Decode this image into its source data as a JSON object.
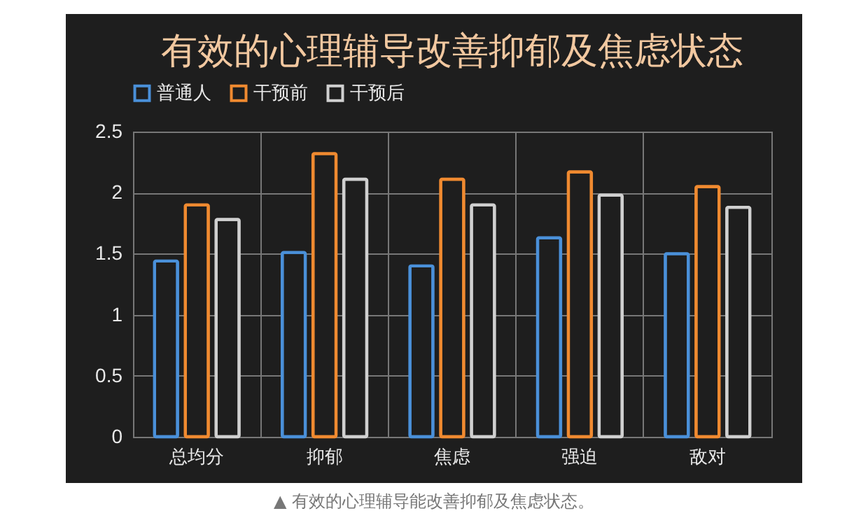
{
  "chart_data": {
    "type": "bar",
    "title": "有效的心理辅导改善抑郁及焦虑状态",
    "categories": [
      "总均分",
      "抑郁",
      "焦虑",
      "强迫",
      "敌对"
    ],
    "series": [
      {
        "name": "普通人",
        "color": "#4a90d9",
        "values": [
          1.44,
          1.51,
          1.4,
          1.63,
          1.5
        ]
      },
      {
        "name": "干预前",
        "color": "#f08a30",
        "values": [
          1.9,
          2.32,
          2.11,
          2.17,
          2.05
        ]
      },
      {
        "name": "干预后",
        "color": "#d0d0d0",
        "values": [
          1.78,
          2.11,
          1.9,
          1.98,
          1.88
        ]
      }
    ],
    "ylim": [
      0,
      2.5
    ],
    "yticks": [
      0,
      0.5,
      1,
      1.5,
      2,
      2.5
    ],
    "grid": true,
    "legend": "top",
    "annotations": [
      "▲ 有效的心理辅导能改善抑郁及焦虑状态。"
    ]
  }
}
